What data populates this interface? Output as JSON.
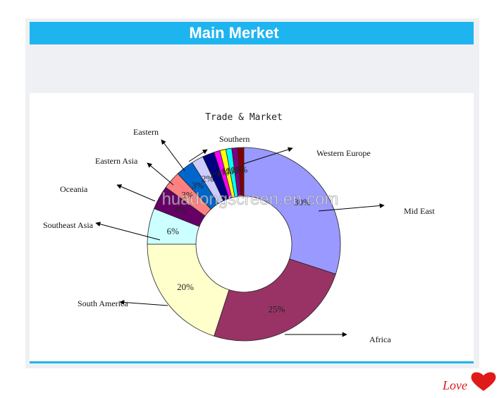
{
  "header": {
    "title": "Main Merket"
  },
  "watermark": "huadongscreen.en.com",
  "love": {
    "text": "Love",
    "color": "#e01919"
  },
  "colors": {
    "header_bg": "#1eb4ef",
    "panel_bg": "#eef0f3"
  },
  "chart_data": {
    "type": "pie",
    "style": "donut",
    "title": "Trade & Market",
    "slices": [
      {
        "label": "Mid East",
        "value": 30,
        "value_label": "30%",
        "color": "#9999ff"
      },
      {
        "label": "Africa",
        "value": 25,
        "value_label": "25%",
        "color": "#993366"
      },
      {
        "label": "South America",
        "value": 20,
        "value_label": "20%",
        "color": "#ffffcc"
      },
      {
        "label": "Southeast Asia",
        "value": 6,
        "value_label": "6%",
        "color": "#ccffff"
      },
      {
        "label": "Oceania",
        "value": 4,
        "value_label": "4%",
        "color": "#660066"
      },
      {
        "label": "Eastern Asia",
        "value": 3,
        "value_label": "3%",
        "color": "#ff8080"
      },
      {
        "label": "Eastern",
        "value": 3,
        "value_label": "3%",
        "color": "#0066cc"
      },
      {
        "label": "",
        "value": 2,
        "value_label": "2%",
        "color": "#ccccff"
      },
      {
        "label": "",
        "value": 2,
        "value_label": "2%",
        "color": "#000080"
      },
      {
        "label": "Southern",
        "value": 1,
        "value_label": "1%",
        "color": "#ff00ff"
      },
      {
        "label": "",
        "value": 1,
        "value_label": "1%",
        "color": "#ffff00"
      },
      {
        "label": "",
        "value": 1,
        "value_label": "1%",
        "color": "#00ffff"
      },
      {
        "label": "",
        "value": 1,
        "value_label": "1%",
        "color": "#800080"
      },
      {
        "label": "Western Europe",
        "value": 1,
        "value_label": "1%",
        "color": "#800000"
      }
    ]
  }
}
